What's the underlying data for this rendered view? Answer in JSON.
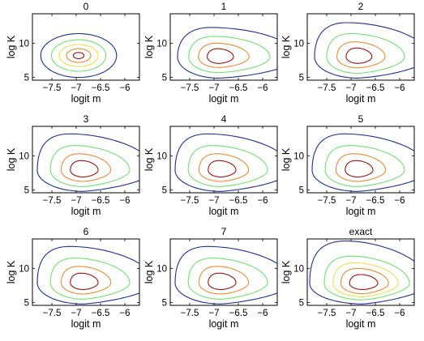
{
  "figure": {
    "panel_titles": [
      "0",
      "1",
      "2",
      "3",
      "4",
      "5",
      "6",
      "7",
      "exact"
    ],
    "xlabel": "logit m",
    "ylabel": "log K"
  },
  "chart_data": {
    "type": "contour",
    "layout": {
      "rows": 3,
      "cols": 3
    },
    "xlabel": "logit m",
    "ylabel": "log K",
    "xlim": [
      -7.9,
      -5.7
    ],
    "ylim": [
      4.6,
      14.3
    ],
    "xticks": [
      -7.5,
      -7,
      -6.5,
      -6
    ],
    "xtick_labels": [
      "−7.5",
      "−7",
      "−6.5",
      "−6"
    ],
    "yticks": [
      5,
      10
    ],
    "ytick_labels": [
      "5",
      "10"
    ],
    "contour_colors": [
      "#1f2f9a",
      "#6fe36f",
      "#e8e34a",
      "#f08a2e",
      "#a21010"
    ],
    "panels": [
      {
        "title": "0",
        "center": [
          -6.95,
          8.2
        ],
        "levels": [
          {
            "color": "#1f2f9a",
            "shape": "ellipse",
            "rx": 0.78,
            "ry": 3.2
          },
          {
            "color": "#6fe36f",
            "shape": "ellipse",
            "rx": 0.56,
            "ry": 2.3
          },
          {
            "color": "#e8e34a",
            "shape": "ellipse",
            "rx": 0.4,
            "ry": 1.6
          },
          {
            "color": "#f08a2e",
            "shape": "ellipse",
            "rx": 0.25,
            "ry": 1.0
          },
          {
            "color": "#a21010",
            "shape": "ellipse",
            "rx": 0.11,
            "ry": 0.45
          }
        ]
      },
      {
        "title": "1",
        "center": [
          -6.9,
          8.0
        ],
        "levels": [
          {
            "color": "#1f2f9a",
            "shape": "skewed",
            "left": 0.85,
            "right": 1.6,
            "up": 4.3,
            "down": 3.1,
            "slant": 0.35
          },
          {
            "color": "#6fe36f",
            "shape": "skewed",
            "left": 0.62,
            "right": 1.05,
            "up": 3.0,
            "down": 2.3,
            "slant": 0.3
          },
          {
            "color": "#f08a2e",
            "shape": "skewed",
            "left": 0.42,
            "right": 0.62,
            "up": 2.0,
            "down": 1.55,
            "slant": 0.25
          },
          {
            "color": "#a21010",
            "shape": "skewed",
            "left": 0.24,
            "right": 0.3,
            "up": 1.2,
            "down": 0.95,
            "slant": 0.2
          }
        ]
      },
      {
        "title": "2",
        "center": [
          -6.85,
          8.0
        ],
        "levels": [
          {
            "color": "#1f2f9a",
            "shape": "skewed",
            "left": 0.9,
            "right": 1.45,
            "up": 5.0,
            "down": 3.1,
            "slant": 0.45
          },
          {
            "color": "#6fe36f",
            "shape": "skewed",
            "left": 0.65,
            "right": 0.95,
            "up": 3.4,
            "down": 2.4,
            "slant": 0.4
          },
          {
            "color": "#f08a2e",
            "shape": "skewed",
            "left": 0.44,
            "right": 0.55,
            "up": 2.2,
            "down": 1.6,
            "slant": 0.3
          },
          {
            "color": "#a21010",
            "shape": "skewed",
            "left": 0.25,
            "right": 0.28,
            "up": 1.3,
            "down": 0.95,
            "slant": 0.25
          }
        ]
      },
      {
        "title": "3",
        "center": [
          -6.85,
          7.9
        ],
        "levels": [
          {
            "color": "#1f2f9a",
            "shape": "skewed",
            "left": 0.95,
            "right": 1.45,
            "up": 5.3,
            "down": 3.1,
            "slant": 0.5
          },
          {
            "color": "#6fe36f",
            "shape": "skewed",
            "left": 0.68,
            "right": 0.95,
            "up": 3.6,
            "down": 2.4,
            "slant": 0.45
          },
          {
            "color": "#f08a2e",
            "shape": "skewed",
            "left": 0.46,
            "right": 0.56,
            "up": 2.4,
            "down": 1.65,
            "slant": 0.35
          },
          {
            "color": "#a21010",
            "shape": "skewed",
            "left": 0.27,
            "right": 0.3,
            "up": 1.4,
            "down": 1.0,
            "slant": 0.3
          }
        ]
      },
      {
        "title": "4",
        "center": [
          -6.85,
          7.9
        ],
        "levels": [
          {
            "color": "#1f2f9a",
            "shape": "skewed",
            "left": 0.95,
            "right": 1.45,
            "up": 5.3,
            "down": 3.1,
            "slant": 0.5
          },
          {
            "color": "#6fe36f",
            "shape": "skewed",
            "left": 0.68,
            "right": 0.95,
            "up": 3.6,
            "down": 2.4,
            "slant": 0.45
          },
          {
            "color": "#f08a2e",
            "shape": "skewed",
            "left": 0.46,
            "right": 0.56,
            "up": 2.4,
            "down": 1.65,
            "slant": 0.35
          },
          {
            "color": "#a21010",
            "shape": "skewed",
            "left": 0.27,
            "right": 0.3,
            "up": 1.4,
            "down": 1.0,
            "slant": 0.3
          }
        ]
      },
      {
        "title": "5",
        "center": [
          -6.85,
          7.9
        ],
        "levels": [
          {
            "color": "#1f2f9a",
            "shape": "skewed",
            "left": 0.95,
            "right": 1.45,
            "up": 5.3,
            "down": 3.1,
            "slant": 0.5
          },
          {
            "color": "#6fe36f",
            "shape": "skewed",
            "left": 0.68,
            "right": 0.95,
            "up": 3.6,
            "down": 2.4,
            "slant": 0.45
          },
          {
            "color": "#f08a2e",
            "shape": "skewed",
            "left": 0.46,
            "right": 0.56,
            "up": 2.4,
            "down": 1.65,
            "slant": 0.35
          },
          {
            "color": "#a21010",
            "shape": "skewed",
            "left": 0.27,
            "right": 0.3,
            "up": 1.4,
            "down": 1.0,
            "slant": 0.3
          }
        ]
      },
      {
        "title": "6",
        "center": [
          -6.85,
          7.9
        ],
        "levels": [
          {
            "color": "#1f2f9a",
            "shape": "skewed",
            "left": 0.95,
            "right": 1.45,
            "up": 5.3,
            "down": 3.1,
            "slant": 0.5
          },
          {
            "color": "#6fe36f",
            "shape": "skewed",
            "left": 0.68,
            "right": 0.95,
            "up": 3.6,
            "down": 2.4,
            "slant": 0.45
          },
          {
            "color": "#f08a2e",
            "shape": "skewed",
            "left": 0.46,
            "right": 0.56,
            "up": 2.4,
            "down": 1.65,
            "slant": 0.35
          },
          {
            "color": "#a21010",
            "shape": "skewed",
            "left": 0.27,
            "right": 0.3,
            "up": 1.4,
            "down": 1.0,
            "slant": 0.3
          }
        ]
      },
      {
        "title": "7",
        "center": [
          -6.85,
          7.9
        ],
        "levels": [
          {
            "color": "#1f2f9a",
            "shape": "skewed",
            "left": 0.95,
            "right": 1.45,
            "up": 5.3,
            "down": 3.1,
            "slant": 0.5
          },
          {
            "color": "#6fe36f",
            "shape": "skewed",
            "left": 0.68,
            "right": 0.95,
            "up": 3.6,
            "down": 2.4,
            "slant": 0.45
          },
          {
            "color": "#f08a2e",
            "shape": "skewed",
            "left": 0.46,
            "right": 0.56,
            "up": 2.4,
            "down": 1.65,
            "slant": 0.35
          },
          {
            "color": "#a21010",
            "shape": "skewed",
            "left": 0.27,
            "right": 0.3,
            "up": 1.4,
            "down": 1.0,
            "slant": 0.3
          }
        ]
      },
      {
        "title": "exact",
        "center": [
          -6.75,
          7.8
        ],
        "levels": [
          {
            "color": "#1f2f9a",
            "shape": "skewed",
            "left": 1.1,
            "right": 1.35,
            "up": 6.2,
            "down": 3.0,
            "slant": 0.55
          },
          {
            "color": "#6fe36f",
            "shape": "skewed",
            "left": 0.8,
            "right": 0.95,
            "up": 4.0,
            "down": 2.4,
            "slant": 0.5
          },
          {
            "color": "#e8e34a",
            "shape": "skewed",
            "left": 0.62,
            "right": 0.72,
            "up": 3.0,
            "down": 1.95,
            "slant": 0.45
          },
          {
            "color": "#f08a2e",
            "shape": "skewed",
            "left": 0.46,
            "right": 0.52,
            "up": 2.2,
            "down": 1.5,
            "slant": 0.4
          },
          {
            "color": "#a21010",
            "shape": "skewed",
            "left": 0.28,
            "right": 0.3,
            "up": 1.3,
            "down": 0.9,
            "slant": 0.3
          }
        ]
      }
    ]
  }
}
